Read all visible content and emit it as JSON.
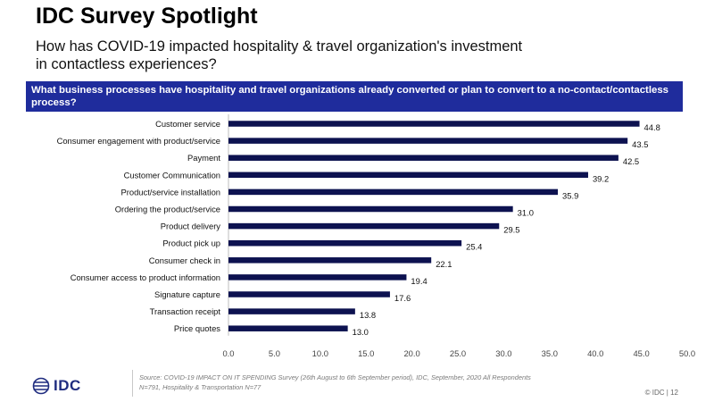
{
  "header": {
    "title": "IDC Survey Spotlight",
    "subtitle": "How has COVID-19 impacted hospitality & travel organization's investment in contactless experiences?"
  },
  "banner": {
    "text": "What business processes have hospitality and travel organizations already converted or plan to convert to a no-contact/contactless process?"
  },
  "colors": {
    "bar": "#0d1250",
    "banner": "#1f2c9c",
    "logo": "#1f2c7f"
  },
  "chart_data": {
    "type": "bar",
    "orientation": "horizontal",
    "categories": [
      "Customer service",
      "Consumer engagement with product/service",
      "Payment",
      "Customer Communication",
      "Product/service installation",
      "Ordering the product/service",
      "Product delivery",
      "Product pick up",
      "Consumer check in",
      "Consumer access to product information",
      "Signature capture",
      "Transaction receipt",
      "Price quotes"
    ],
    "values": [
      44.8,
      43.5,
      42.5,
      39.2,
      35.9,
      31.0,
      29.5,
      25.4,
      22.1,
      19.4,
      17.6,
      13.8,
      13.0
    ],
    "value_labels": [
      "44.8",
      "43.5",
      "42.5",
      "39.2",
      "35.9",
      "31.0",
      "29.5",
      "25.4",
      "22.1",
      "19.4",
      "17.6",
      "13.8",
      "13.0"
    ],
    "xlim": [
      0,
      50
    ],
    "xticks": [
      "0.0",
      "5.0",
      "10.0",
      "15.0",
      "20.0",
      "25.0",
      "30.0",
      "35.0",
      "40.0",
      "45.0",
      "50.0"
    ],
    "title": "",
    "xlabel": "",
    "ylabel": "",
    "grid": false,
    "legend": "none"
  },
  "footer": {
    "source": "Source: COVID-19 IMPACT ON IT SPENDING Survey (26th August to 6th September period), IDC, September, 2020 All Respondents N=791, Hospitality & Transportation N=77",
    "logo_text": "IDC",
    "page": "© IDC  |  12"
  }
}
